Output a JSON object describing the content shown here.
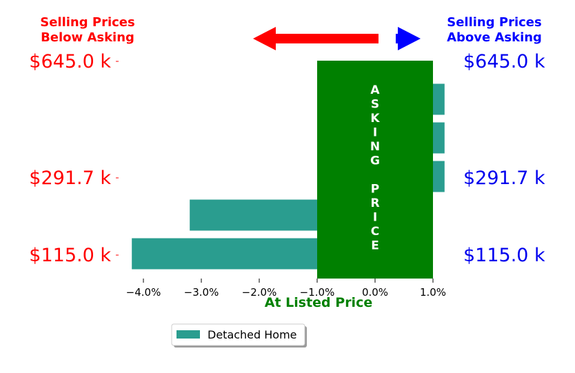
{
  "chart_data": {
    "type": "bar",
    "orientation": "horizontal",
    "title": "",
    "xlabel": "At Listed Price",
    "xlim": [
      -4.2,
      1.2
    ],
    "x_ticks": [
      -4.0,
      -3.0,
      -2.0,
      -1.0,
      0.0,
      1.0
    ],
    "x_tick_labels": [
      "−4.0%",
      "−3.0%",
      "−2.0%",
      "−1.0%",
      "0.0%",
      "1.0%"
    ],
    "grid": false,
    "legend_position": "bottom-center",
    "series": [
      {
        "name": "Detached Home",
        "color": "#2a9d8f",
        "values": [
          -4.2,
          -3.2,
          1.2,
          1.2,
          1.2
        ]
      }
    ],
    "asking_band": {
      "from": -1.0,
      "to": 1.0,
      "color": "#008000",
      "label_letters": [
        "A",
        "S",
        "K",
        "I",
        "N",
        "G",
        "",
        "P",
        "R",
        "I",
        "C",
        "E"
      ]
    },
    "y_labels_left": [
      {
        "row": 0,
        "text": "$115.0 k"
      },
      {
        "row": 2,
        "text": "$291.7 k"
      },
      {
        "row": 5,
        "text": "$645.0 k"
      }
    ],
    "y_labels_right": [
      {
        "row": 0,
        "text": "$115.0 k"
      },
      {
        "row": 2,
        "text": "$291.7 k"
      },
      {
        "row": 5,
        "text": "$645.0 k"
      }
    ],
    "left_color": "#ff0000",
    "right_color": "#0000ee",
    "header_left_lines": [
      "Selling Prices",
      "Below Asking"
    ],
    "header_right_lines": [
      "Selling Prices",
      "Above Asking"
    ],
    "arrow_left_color": "#ff0000",
    "arrow_right_color": "#0000ff"
  }
}
